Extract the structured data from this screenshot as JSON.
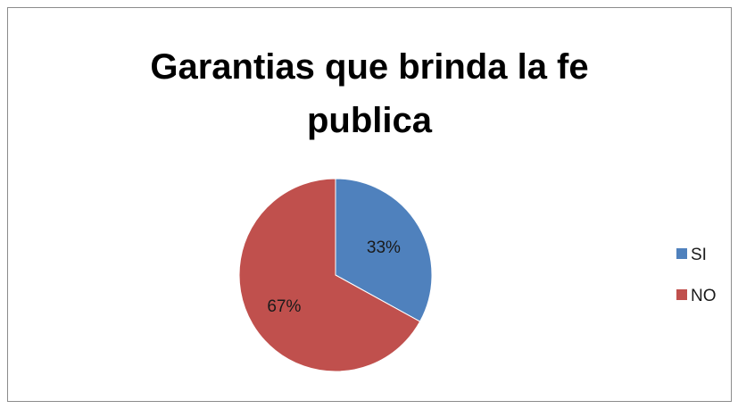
{
  "chart_data": {
    "type": "pie",
    "title": "Garantias que brinda la fe publica",
    "categories": [
      "SI",
      "NO"
    ],
    "values": [
      33,
      67
    ],
    "data_labels": [
      "33%",
      "67%"
    ],
    "colors": [
      "#4f81bd",
      "#c0504d"
    ],
    "legend_position": "right",
    "start_angle": "12 o'clock, clockwise"
  }
}
